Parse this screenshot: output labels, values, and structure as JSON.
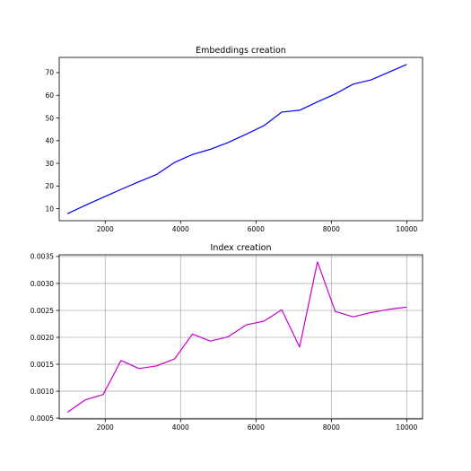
{
  "chart_data": [
    {
      "type": "line",
      "title": "Embeddings creation",
      "xlabel": "",
      "ylabel": "",
      "grid": false,
      "xlim": [
        780,
        10420
      ],
      "ylim": [
        4.7,
        76.7
      ],
      "xticks": [
        2000,
        4000,
        6000,
        8000,
        10000
      ],
      "xtick_labels": [
        "2000",
        "4000",
        "6000",
        "8000",
        "10000"
      ],
      "yticks": [
        10,
        20,
        30,
        40,
        50,
        60,
        70
      ],
      "ytick_labels": [
        "10",
        "20",
        "30",
        "40",
        "50",
        "60",
        "70"
      ],
      "series": [
        {
          "color": "#0000ff",
          "x": [
            1000,
            1474,
            1947,
            2421,
            2895,
            3368,
            3842,
            4316,
            4789,
            5263,
            5737,
            6211,
            6684,
            7158,
            7632,
            8105,
            8579,
            9053,
            9526,
            10000
          ],
          "y": [
            7.8,
            11.5,
            15.0,
            18.5,
            21.9,
            25.1,
            30.4,
            33.9,
            36.2,
            39.2,
            42.8,
            46.6,
            52.6,
            53.4,
            57.1,
            60.6,
            64.9,
            66.8,
            70.2,
            73.6
          ]
        }
      ]
    },
    {
      "type": "line",
      "title": "Index creation",
      "xlabel": "",
      "ylabel": "",
      "grid": true,
      "xlim": [
        780,
        10420
      ],
      "ylim": [
        0.000485,
        0.003532
      ],
      "xticks": [
        2000,
        4000,
        6000,
        8000,
        10000
      ],
      "xtick_labels": [
        "2000",
        "4000",
        "6000",
        "8000",
        "10000"
      ],
      "yticks": [
        0.0005,
        0.001,
        0.0015,
        0.002,
        0.0025,
        0.003,
        0.0035
      ],
      "ytick_labels": [
        "0.0005",
        "0.0010",
        "0.0015",
        "0.0020",
        "0.0025",
        "0.0030",
        "0.0035"
      ],
      "series": [
        {
          "color": "#cc00cc",
          "x": [
            1000,
            1474,
            1947,
            2421,
            2895,
            3368,
            3842,
            4316,
            4789,
            5263,
            5737,
            6211,
            6684,
            7158,
            7632,
            8105,
            8579,
            9053,
            9526,
            10000
          ],
          "y": [
            0.00061,
            0.00084,
            0.00094,
            0.00157,
            0.00142,
            0.00147,
            0.0016,
            0.00206,
            0.00193,
            0.00201,
            0.00223,
            0.0023,
            0.00251,
            0.00182,
            0.0034,
            0.00248,
            0.00238,
            0.00246,
            0.00252,
            0.00256
          ]
        }
      ]
    }
  ]
}
